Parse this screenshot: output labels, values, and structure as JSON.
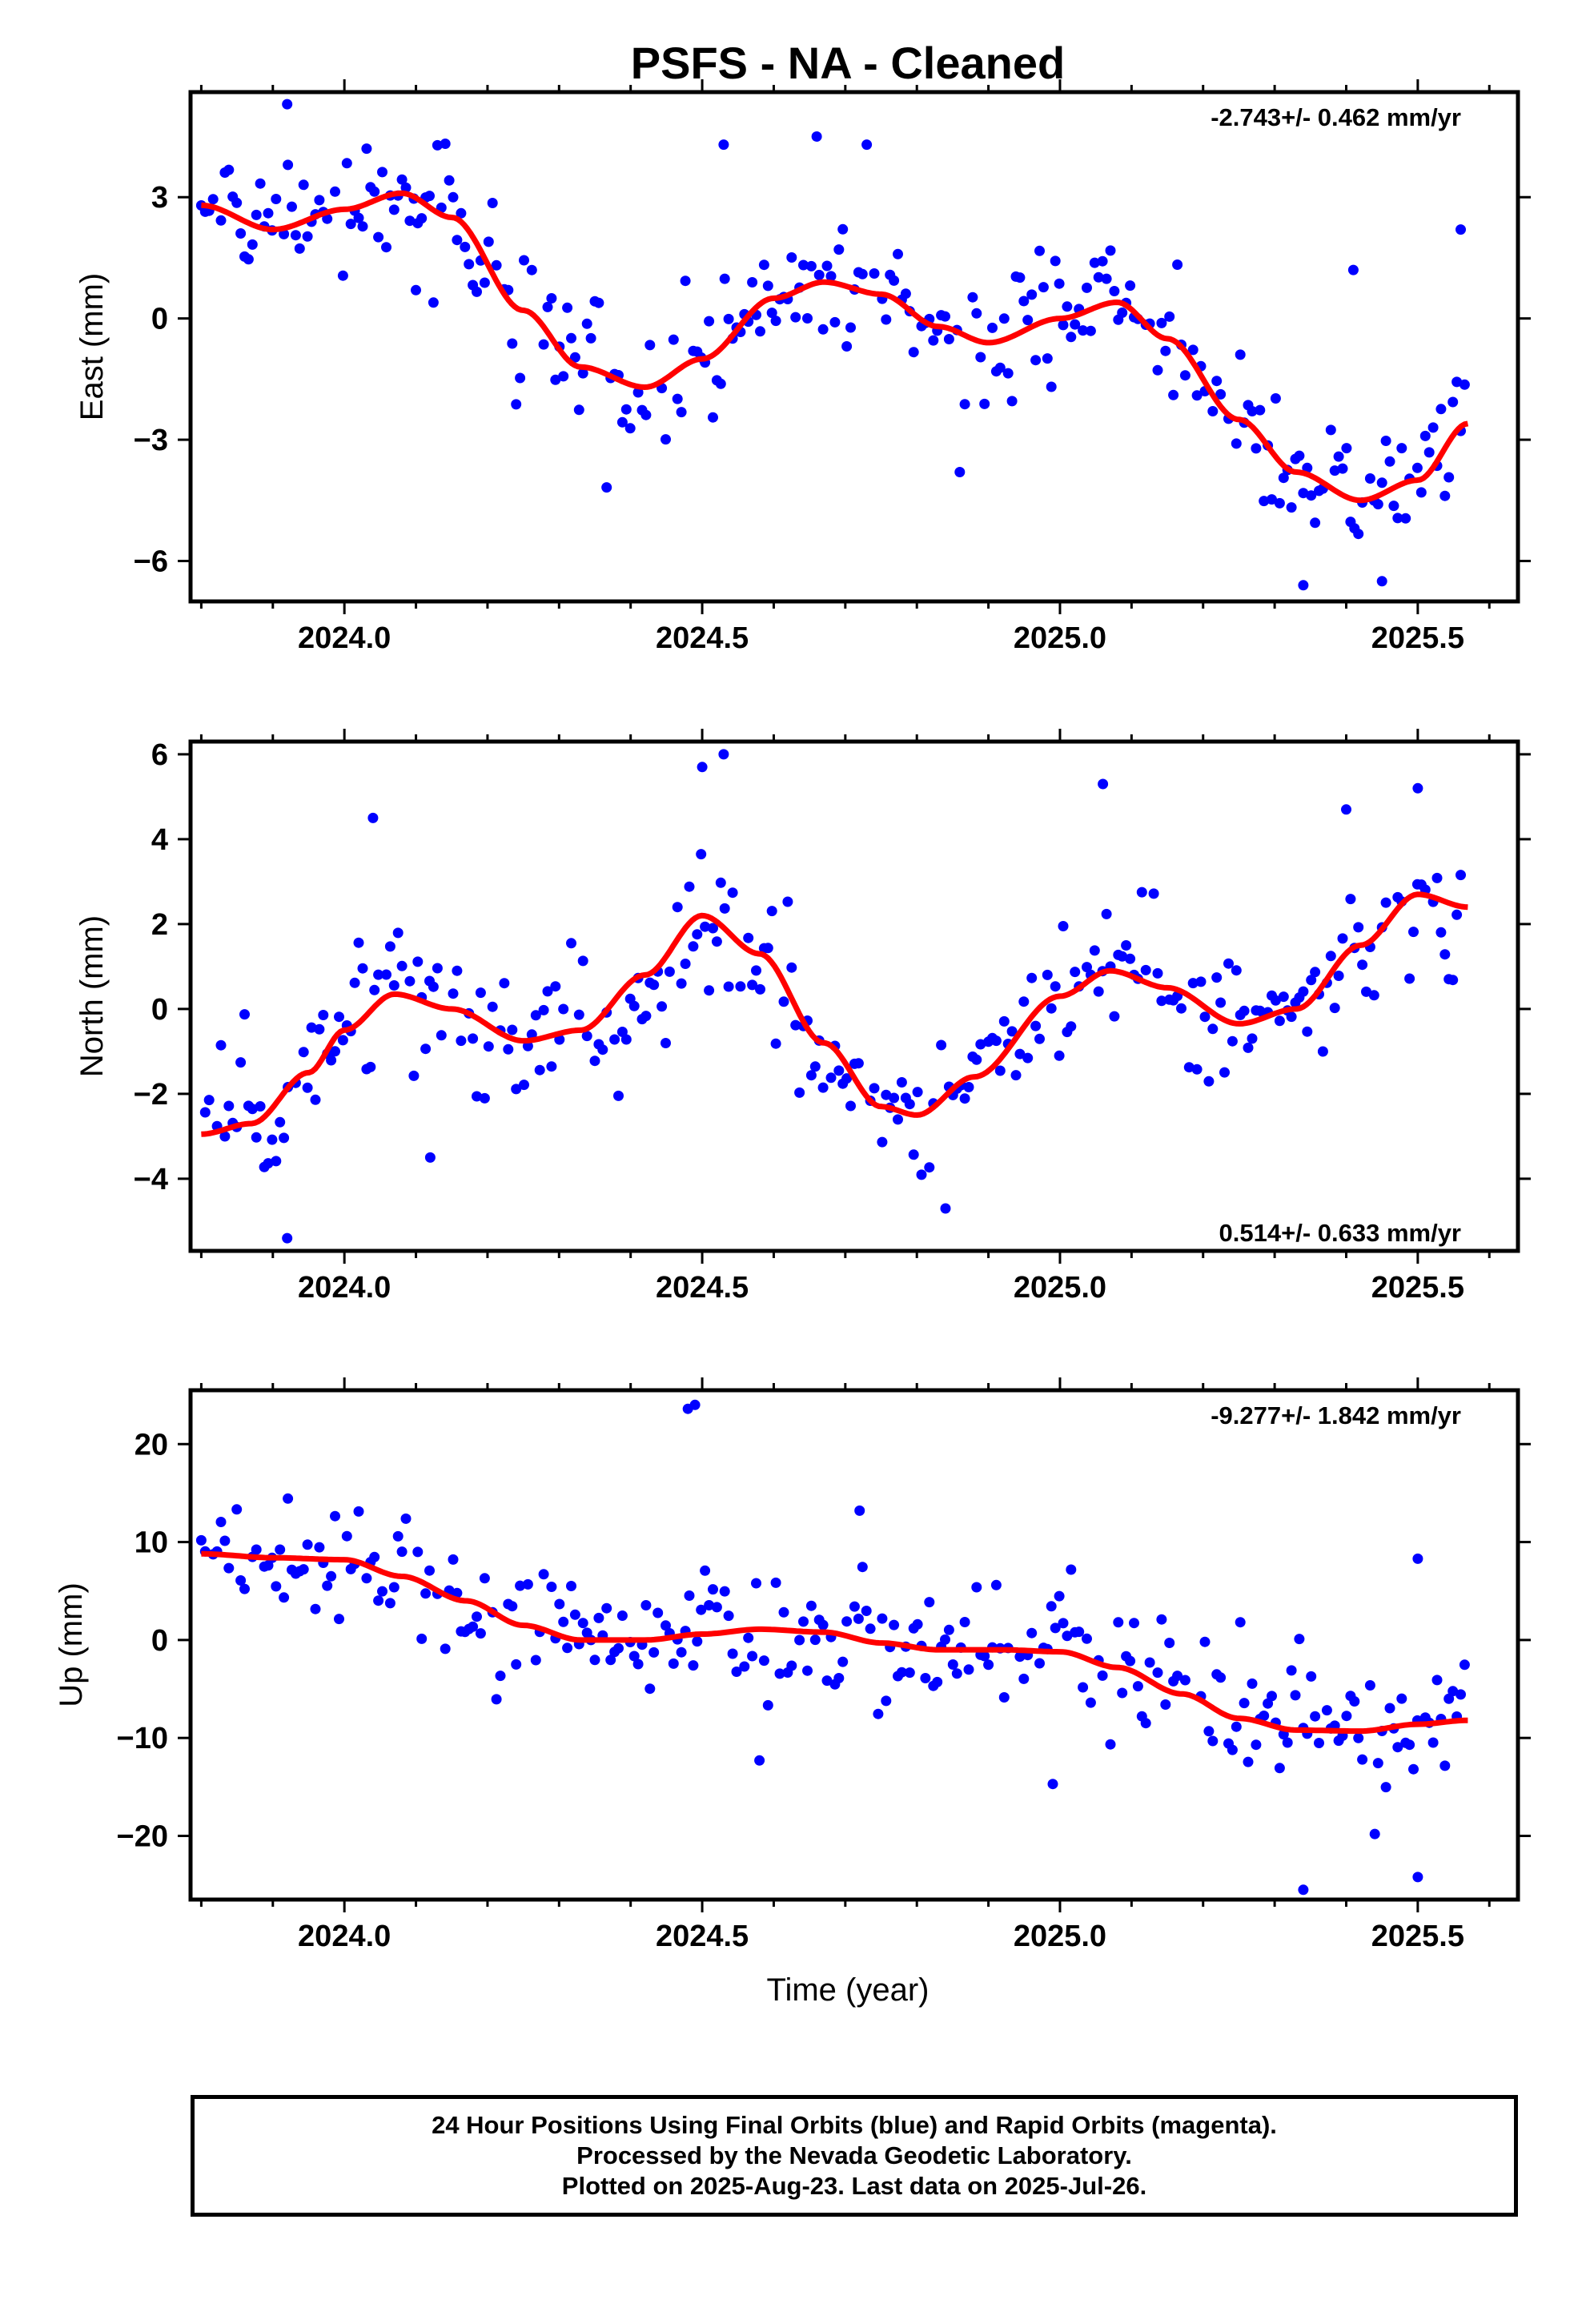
{
  "figure": {
    "title": "PSFS  - NA - Cleaned",
    "xlabel": "Time (year)",
    "caption": [
      "24 Hour Positions Using Final Orbits (blue) and Rapid Orbits (magenta).",
      "Processed by the Nevada Geodetic Laboratory.",
      "Plotted on 2025-Aug-23. Last data on 2025-Jul-26."
    ],
    "colors": {
      "final_orbits_points": "#0000ff",
      "model_fit": "#ff0000",
      "axes": "#000000"
    }
  },
  "chart_data": [
    {
      "type": "scatter",
      "ylabel": "East (mm)",
      "rate_text": "-2.743+/- 0.462 mm/yr",
      "xlim": [
        2023.785,
        2025.64
      ],
      "ylim": [
        -7.0,
        5.6
      ],
      "xticks": [
        "2024.0",
        "2024.5",
        "2025.0",
        "2025.5"
      ],
      "yticks": [
        [
          "3",
          3
        ],
        [
          "0",
          0
        ],
        [
          "−3",
          -3
        ],
        [
          "−6",
          -6
        ]
      ],
      "fit": {
        "name": "model",
        "x": [
          2023.8,
          2023.9,
          2024.0,
          2024.08,
          2024.15,
          2024.25,
          2024.33,
          2024.42,
          2024.5,
          2024.6,
          2024.67,
          2024.75,
          2024.83,
          2024.9,
          2025.0,
          2025.08,
          2025.15,
          2025.25,
          2025.33,
          2025.42,
          2025.5,
          2025.57
        ],
        "y": [
          2.8,
          2.2,
          2.7,
          3.1,
          2.5,
          0.2,
          -1.2,
          -1.7,
          -1.0,
          0.5,
          0.9,
          0.6,
          -0.2,
          -0.6,
          0.0,
          0.4,
          -0.5,
          -2.5,
          -3.8,
          -4.5,
          -4.0,
          -2.6
        ]
      },
      "points": {
        "anchor_x": [
          2023.8,
          2023.9,
          2024.0,
          2024.08,
          2024.15,
          2024.25,
          2024.33,
          2024.42,
          2024.5,
          2024.6,
          2024.67,
          2024.75,
          2024.83,
          2024.9,
          2025.0,
          2025.08,
          2025.15,
          2025.25,
          2025.33,
          2025.42,
          2025.5,
          2025.57
        ],
        "anchor_y": [
          2.8,
          2.2,
          2.7,
          3.1,
          2.5,
          0.2,
          -1.2,
          -1.7,
          -1.0,
          0.5,
          0.9,
          0.6,
          -0.2,
          -0.6,
          0.0,
          0.4,
          -0.5,
          -2.5,
          -3.8,
          -4.5,
          -4.0,
          -2.6
        ],
        "spacing_years": 0.0055,
        "scatter_sd": 0.8,
        "outliers": [
          [
            2023.92,
            5.3
          ],
          [
            2024.53,
            4.3
          ],
          [
            2024.66,
            4.5
          ],
          [
            2024.73,
            4.3
          ],
          [
            2025.41,
            1.2
          ],
          [
            2025.56,
            2.2
          ],
          [
            2025.34,
            -6.6
          ],
          [
            2025.45,
            -6.5
          ],
          [
            2024.86,
            -3.8
          ],
          [
            2024.1,
            0.7
          ]
        ]
      }
    },
    {
      "type": "scatter",
      "ylabel": "North (mm)",
      "rate_text": "0.514+/- 0.633 mm/yr",
      "xlim": [
        2023.785,
        2025.64
      ],
      "ylim": [
        -5.7,
        6.3
      ],
      "xticks": [
        "2024.0",
        "2024.5",
        "2025.0",
        "2025.5"
      ],
      "yticks": [
        [
          "6",
          6
        ],
        [
          "4",
          4
        ],
        [
          "2",
          2
        ],
        [
          "0",
          0
        ],
        [
          "−2",
          -2
        ],
        [
          "−4",
          -4
        ]
      ],
      "fit": {
        "name": "model",
        "x": [
          2023.8,
          2023.87,
          2023.95,
          2024.0,
          2024.07,
          2024.15,
          2024.25,
          2024.33,
          2024.42,
          2024.5,
          2024.58,
          2024.67,
          2024.75,
          2024.8,
          2024.88,
          2025.0,
          2025.07,
          2025.15,
          2025.25,
          2025.33,
          2025.42,
          2025.5,
          2025.57
        ],
        "y": [
          -2.95,
          -2.7,
          -1.5,
          -0.5,
          0.35,
          0.0,
          -0.75,
          -0.5,
          0.8,
          2.2,
          1.3,
          -0.8,
          -2.3,
          -2.5,
          -1.6,
          0.3,
          0.9,
          0.5,
          -0.35,
          0.0,
          1.5,
          2.7,
          2.4
        ]
      },
      "points": {
        "anchor_x": [
          2023.8,
          2023.87,
          2023.95,
          2024.0,
          2024.07,
          2024.15,
          2024.25,
          2024.33,
          2024.42,
          2024.5,
          2024.58,
          2024.67,
          2024.75,
          2024.8,
          2024.88,
          2025.0,
          2025.07,
          2025.15,
          2025.25,
          2025.33,
          2025.42,
          2025.5,
          2025.57
        ],
        "anchor_y": [
          -2.95,
          -2.7,
          -1.5,
          -0.5,
          0.35,
          0.0,
          -0.75,
          -0.5,
          0.8,
          2.2,
          1.3,
          -0.8,
          -2.3,
          -2.5,
          -1.6,
          0.3,
          0.9,
          0.5,
          -0.35,
          0.0,
          1.5,
          2.7,
          2.4
        ],
        "spacing_years": 0.0055,
        "scatter_sd": 0.9,
        "outliers": [
          [
            2024.04,
            4.5
          ],
          [
            2024.53,
            6.0
          ],
          [
            2024.5,
            5.7
          ],
          [
            2025.06,
            5.3
          ],
          [
            2025.5,
            5.2
          ],
          [
            2025.4,
            4.7
          ],
          [
            2024.84,
            -4.7
          ],
          [
            2023.92,
            -5.4
          ],
          [
            2024.12,
            -3.5
          ]
        ]
      }
    },
    {
      "type": "scatter",
      "ylabel": "Up (mm)",
      "rate_text": "-9.277+/- 1.842 mm/yr",
      "xlim": [
        2023.785,
        2025.64
      ],
      "ylim": [
        -26.5,
        25.5
      ],
      "xticks": [
        "2024.0",
        "2024.5",
        "2025.0",
        "2025.5"
      ],
      "yticks": [
        [
          "20",
          20
        ],
        [
          "10",
          10
        ],
        [
          "0",
          0
        ],
        [
          "−10",
          -10
        ],
        [
          "−20",
          -20
        ]
      ],
      "fit": {
        "name": "model",
        "x": [
          2023.8,
          2023.9,
          2024.0,
          2024.08,
          2024.17,
          2024.25,
          2024.33,
          2024.42,
          2024.5,
          2024.58,
          2024.67,
          2024.75,
          2024.83,
          2024.92,
          2025.0,
          2025.08,
          2025.17,
          2025.25,
          2025.33,
          2025.42,
          2025.5,
          2025.57
        ],
        "y": [
          8.8,
          8.4,
          8.2,
          6.5,
          4.0,
          1.5,
          0.0,
          0.0,
          0.6,
          1.1,
          0.8,
          -0.3,
          -1.0,
          -1.0,
          -1.2,
          -2.8,
          -5.5,
          -8.0,
          -9.2,
          -9.3,
          -8.6,
          -8.2
        ]
      },
      "points": {
        "anchor_x": [
          2023.8,
          2023.9,
          2024.0,
          2024.08,
          2024.17,
          2024.25,
          2024.33,
          2024.42,
          2024.5,
          2024.58,
          2024.67,
          2024.75,
          2024.83,
          2024.92,
          2025.0,
          2025.08,
          2025.17,
          2025.25,
          2025.33,
          2025.42,
          2025.5,
          2025.57
        ],
        "anchor_y": [
          8.8,
          8.4,
          8.2,
          6.5,
          4.0,
          1.5,
          0.0,
          0.0,
          0.6,
          1.1,
          0.8,
          -0.3,
          -1.0,
          -1.0,
          -1.2,
          -2.8,
          -5.5,
          -8.0,
          -9.2,
          -9.3,
          -8.6,
          -8.2
        ],
        "spacing_years": 0.0055,
        "scatter_sd": 3.2,
        "outliers": [
          [
            2024.49,
            24.0
          ],
          [
            2024.48,
            23.6
          ],
          [
            2024.72,
            13.2
          ],
          [
            2025.34,
            -25.5
          ],
          [
            2025.5,
            -24.2
          ],
          [
            2025.44,
            -19.8
          ],
          [
            2024.99,
            -14.7
          ],
          [
            2024.58,
            -12.3
          ],
          [
            2025.5,
            8.3
          ]
        ]
      }
    }
  ]
}
